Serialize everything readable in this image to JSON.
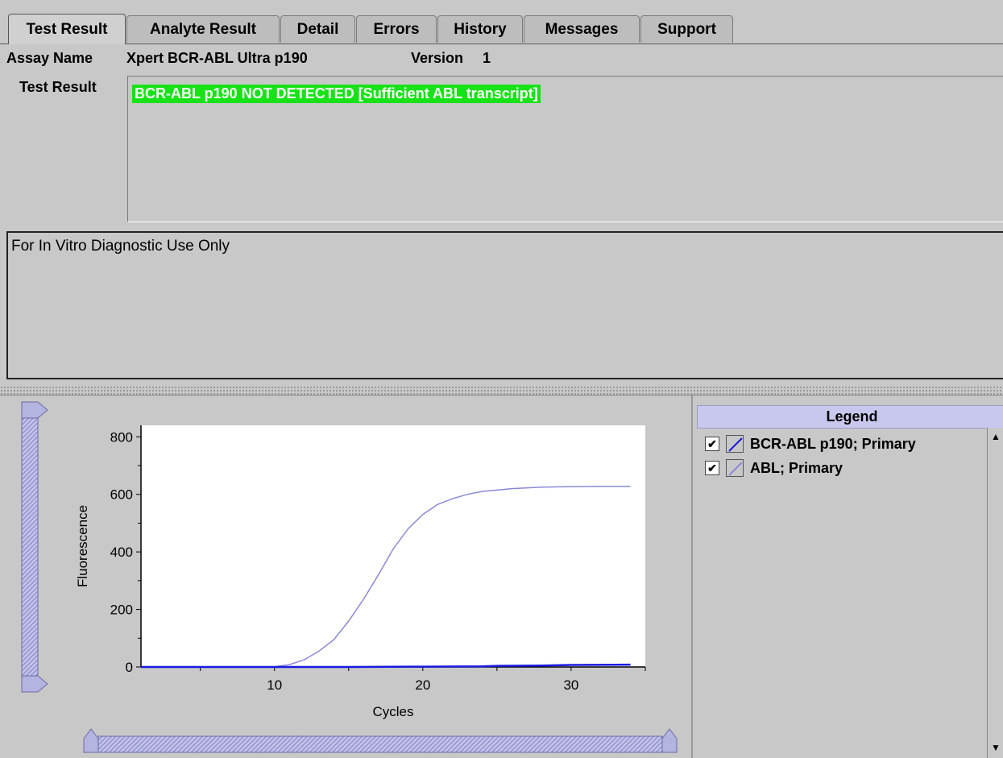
{
  "tabs": [
    {
      "label": "Test Result",
      "active": true
    },
    {
      "label": "Analyte Result",
      "active": false
    },
    {
      "label": "Detail",
      "active": false
    },
    {
      "label": "Errors",
      "active": false
    },
    {
      "label": "History",
      "active": false
    },
    {
      "label": "Messages",
      "active": false
    },
    {
      "label": "Support",
      "active": false
    }
  ],
  "assay": {
    "name_label": "Assay Name",
    "name_value": "Xpert BCR-ABL Ultra p190",
    "version_label": "Version",
    "version_value": "1"
  },
  "result": {
    "label": "Test Result",
    "value": "BCR-ABL p190 NOT DETECTED [Sufficient ABL transcript]",
    "highlight_color": "#17e217"
  },
  "note": "For In Vitro Diagnostic Use Only",
  "legend": {
    "title": "Legend",
    "items": [
      {
        "label": "BCR-ABL p190; Primary",
        "checked": true,
        "color": "#1a1ae0"
      },
      {
        "label": "ABL; Primary",
        "checked": true,
        "color": "#8a8ad8"
      }
    ]
  },
  "chart_data": {
    "type": "line",
    "xlabel": "Cycles",
    "ylabel": "Fluorescence",
    "xlim": [
      1,
      35
    ],
    "ylim": [
      0,
      840
    ],
    "x_ticks": [
      10,
      20,
      30
    ],
    "y_ticks": [
      0,
      200,
      400,
      600,
      800
    ],
    "grid": false,
    "series": [
      {
        "name": "BCR-ABL p190; Primary",
        "color": "#1a1ae0",
        "x": [
          1,
          5,
          10,
          15,
          20,
          24,
          25,
          28,
          30,
          34
        ],
        "y": [
          0,
          0,
          0,
          0,
          1,
          2,
          4,
          5,
          7,
          8
        ]
      },
      {
        "name": "ABL; Primary",
        "color": "#8a8ad8",
        "x": [
          1,
          5,
          9,
          10,
          11,
          12,
          13,
          14,
          15,
          16,
          17,
          18,
          19,
          20,
          21,
          22,
          23,
          24,
          25,
          26,
          28,
          30,
          32,
          34
        ],
        "y": [
          0,
          0,
          0,
          1,
          8,
          25,
          55,
          95,
          160,
          235,
          320,
          410,
          480,
          530,
          565,
          585,
          600,
          610,
          615,
          620,
          625,
          627,
          628,
          628
        ]
      }
    ]
  }
}
